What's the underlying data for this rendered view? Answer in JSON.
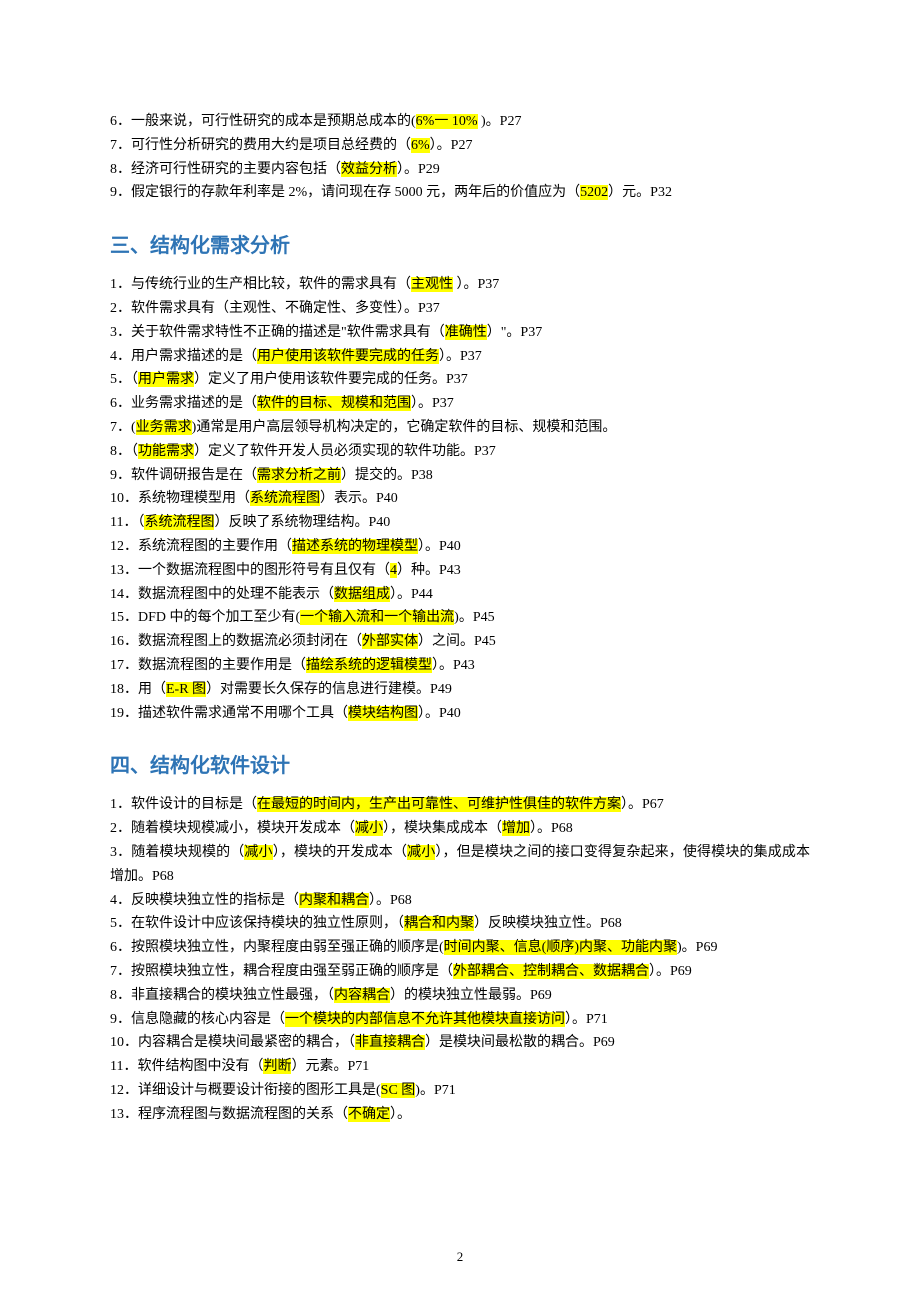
{
  "colors": {
    "heading": "#2e74b5",
    "highlight_bg": "#ffff00",
    "text": "#000000",
    "bg": "#ffffff"
  },
  "typography": {
    "body_font": "SimSun",
    "body_size_pt": 10.5,
    "heading_font": "SimHei",
    "heading_size_pt": 15,
    "line_height": 1.7
  },
  "page_number": "2",
  "sections": [
    {
      "heading": null,
      "items": [
        {
          "runs": [
            {
              "t": "6．一般来说，可行性研究的成本是预期总成本的("
            },
            {
              "t": "6%一 10%",
              "h": true
            },
            {
              "t": "     )。P27"
            }
          ]
        },
        {
          "runs": [
            {
              "t": "7．可行性分析研究的费用大约是项目总经费的（"
            },
            {
              "t": "6%",
              "h": true
            },
            {
              "t": "）。P27"
            }
          ]
        },
        {
          "runs": [
            {
              "t": "8．经济可行性研究的主要内容包括（"
            },
            {
              "t": "效益分析",
              "h": true
            },
            {
              "t": "）。P29"
            }
          ]
        },
        {
          "runs": [
            {
              "t": "9．假定银行的存款年利率是 2%，请问现在存 5000 元，两年后的价值应为（"
            },
            {
              "t": "5202",
              "h": true
            },
            {
              "t": "）元。P32"
            }
          ]
        }
      ]
    },
    {
      "heading": "三、结构化需求分析",
      "items": [
        {
          "runs": [
            {
              "t": "1．与传统行业的生产相比较，软件的需求具有（"
            },
            {
              "t": "主观性",
              "h": true
            },
            {
              "t": "     ）。P37"
            }
          ]
        },
        {
          "runs": [
            {
              "t": "2．软件需求具有（主观性、不确定性、多变性）。P37"
            }
          ]
        },
        {
          "runs": [
            {
              "t": "3．关于软件需求特性不正确的描述是\"软件需求具有（"
            },
            {
              "t": "准确性",
              "h": true
            },
            {
              "t": "）\"。P37"
            }
          ]
        },
        {
          "runs": [
            {
              "t": "4．用户需求描述的是（"
            },
            {
              "t": "用户使用该软件要完成的任务",
              "h": true
            },
            {
              "t": "）。P37"
            }
          ]
        },
        {
          "runs": [
            {
              "t": "5．（"
            },
            {
              "t": "用户需求",
              "h": true
            },
            {
              "t": "）定义了用户使用该软件要完成的任务。P37"
            }
          ]
        },
        {
          "runs": [
            {
              "t": "6．业务需求描述的是（"
            },
            {
              "t": "软件的目标、规模和范围",
              "h": true
            },
            {
              "t": "）。P37"
            }
          ]
        },
        {
          "runs": [
            {
              "t": "7．("
            },
            {
              "t": "业务需求",
              "h": true
            },
            {
              "t": ")通常是用户高层领导机构决定的，它确定软件的目标、规模和范围。"
            }
          ]
        },
        {
          "runs": [
            {
              "t": "8．（"
            },
            {
              "t": "功能需求",
              "h": true
            },
            {
              "t": "）定义了软件开发人员必须实现的软件功能。P37"
            }
          ]
        },
        {
          "runs": [
            {
              "t": "9．软件调研报告是在（"
            },
            {
              "t": "需求分析之前",
              "h": true
            },
            {
              "t": "）提交的。P38"
            }
          ]
        },
        {
          "runs": [
            {
              "t": "10．系统物理模型用（"
            },
            {
              "t": "系统流程图",
              "h": true
            },
            {
              "t": "）表示。P40"
            }
          ]
        },
        {
          "runs": [
            {
              "t": "11．（"
            },
            {
              "t": "系统流程图",
              "h": true
            },
            {
              "t": "）反映了系统物理结构。P40"
            }
          ]
        },
        {
          "runs": [
            {
              "t": "12．系统流程图的主要作用（"
            },
            {
              "t": "描述系统的物理模型",
              "h": true
            },
            {
              "t": "）。P40"
            }
          ]
        },
        {
          "runs": [
            {
              "t": "13．一个数据流程图中的图形符号有且仅有（"
            },
            {
              "t": "4",
              "h": true
            },
            {
              "t": "）种。P43"
            }
          ]
        },
        {
          "runs": [
            {
              "t": "14．数据流程图中的处理不能表示（"
            },
            {
              "t": "数据组成",
              "h": true
            },
            {
              "t": "）。P44"
            }
          ]
        },
        {
          "runs": [
            {
              "t": "15．DFD 中的每个加工至少有("
            },
            {
              "t": "一个输入流和一个输出流",
              "h": true
            },
            {
              "t": ")。P45"
            }
          ]
        },
        {
          "runs": [
            {
              "t": "16．数据流程图上的数据流必须封闭在（"
            },
            {
              "t": "外部实体",
              "h": true
            },
            {
              "t": "）之间。P45"
            }
          ]
        },
        {
          "runs": [
            {
              "t": "17．数据流程图的主要作用是（"
            },
            {
              "t": "描绘系统的逻辑模型",
              "h": true
            },
            {
              "t": "）。P43"
            }
          ]
        },
        {
          "runs": [
            {
              "t": "18．用（"
            },
            {
              "t": "E-R 图",
              "h": true
            },
            {
              "t": "）对需要长久保存的信息进行建模。P49"
            }
          ]
        },
        {
          "runs": [
            {
              "t": "19．描述软件需求通常不用哪个工具（"
            },
            {
              "t": "模块结构图",
              "h": true
            },
            {
              "t": "）。P40"
            }
          ]
        }
      ]
    },
    {
      "heading": "四、结构化软件设计",
      "items": [
        {
          "runs": [
            {
              "t": "1．软件设计的目标是（"
            },
            {
              "t": "在最短的时间内，生产出可靠性、可维护性俱佳的软件方案",
              "h": true
            },
            {
              "t": "）。P67"
            }
          ]
        },
        {
          "runs": [
            {
              "t": "2．随着模块规模减小，模块开发成本（"
            },
            {
              "t": "减小",
              "h": true
            },
            {
              "t": "），模块集成成本（"
            },
            {
              "t": "增加",
              "h": true
            },
            {
              "t": "）。P68"
            }
          ]
        },
        {
          "runs": [
            {
              "t": "3．随着模块规模的（"
            },
            {
              "t": "减小",
              "h": true
            },
            {
              "t": "），模块的开发成本（"
            },
            {
              "t": "减小",
              "h": true
            },
            {
              "t": "），但是模块之间的接口变得复杂起来，使得模块的集成成本增加。P68"
            }
          ]
        },
        {
          "runs": [
            {
              "t": "4．反映模块独立性的指标是（"
            },
            {
              "t": "内聚和耦合",
              "h": true
            },
            {
              "t": "）。P68"
            }
          ]
        },
        {
          "runs": [
            {
              "t": "5．在软件设计中应该保持模块的独立性原则，（"
            },
            {
              "t": "耦合和内聚",
              "h": true
            },
            {
              "t": "）反映模块独立性。P68"
            }
          ]
        },
        {
          "runs": [
            {
              "t": "6．按照模块独立性，内聚程度由弱至强正确的顺序是("
            },
            {
              "t": "时间内聚、信息(顺序)内聚、功能内聚",
              "h": true
            },
            {
              "t": ")。P69"
            }
          ]
        },
        {
          "runs": [
            {
              "t": "7．按照模块独立性，耦合程度由强至弱正确的顺序是（"
            },
            {
              "t": "外部耦合、控制耦合、数据耦合",
              "h": true
            },
            {
              "t": "）。P69"
            }
          ]
        },
        {
          "runs": [
            {
              "t": "8．非直接耦合的模块独立性最强，（"
            },
            {
              "t": "内容耦合",
              "h": true
            },
            {
              "t": "）的模块独立性最弱。P69"
            }
          ]
        },
        {
          "runs": [
            {
              "t": "9．信息隐藏的核心内容是（"
            },
            {
              "t": "一个模块的内部信息不允许其他模块直接访问",
              "h": true
            },
            {
              "t": "）。P71"
            }
          ]
        },
        {
          "runs": [
            {
              "t": "10．内容耦合是模块间最紧密的耦合，（"
            },
            {
              "t": "非直接耦合",
              "h": true
            },
            {
              "t": "）是模块间最松散的耦合。P69"
            }
          ]
        },
        {
          "runs": [
            {
              "t": "11．软件结构图中没有（"
            },
            {
              "t": "判断",
              "h": true
            },
            {
              "t": "）元素。P71"
            }
          ]
        },
        {
          "runs": [
            {
              "t": "12．详细设计与概要设计衔接的图形工具是("
            },
            {
              "t": "SC 图",
              "h": true
            },
            {
              "t": ")。P71"
            }
          ]
        },
        {
          "runs": [
            {
              "t": "13．程序流程图与数据流程图的关系（"
            },
            {
              "t": "不确定",
              "h": true
            },
            {
              "t": "）。"
            }
          ]
        }
      ]
    }
  ]
}
